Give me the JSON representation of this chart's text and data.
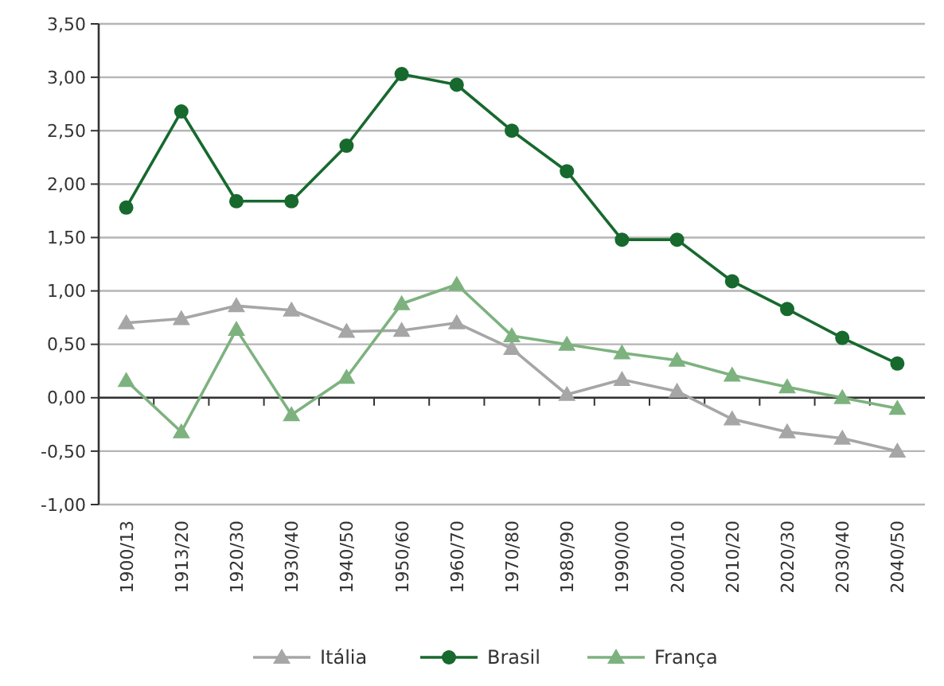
{
  "chart_data": {
    "type": "line",
    "categories": [
      "1900/13",
      "1913/20",
      "1920/30",
      "1930/40",
      "1940/50",
      "1950/60",
      "1960/70",
      "1970/80",
      "1980/90",
      "1990/00",
      "2000/10",
      "2010/20",
      "2020/30",
      "2030/40",
      "2040/50"
    ],
    "series": [
      {
        "name": "Itália",
        "color": "#a6a6a6",
        "marker": "triangle",
        "values": [
          0.7,
          0.74,
          0.86,
          0.82,
          0.62,
          0.63,
          0.7,
          0.46,
          0.03,
          0.17,
          0.06,
          -0.2,
          -0.32,
          -0.38,
          -0.5
        ]
      },
      {
        "name": "Brasil",
        "color": "#17692e",
        "marker": "circle",
        "values": [
          1.78,
          2.68,
          1.84,
          1.84,
          2.36,
          3.03,
          2.93,
          2.5,
          2.12,
          1.48,
          1.48,
          1.09,
          0.83,
          0.56,
          0.32
        ]
      },
      {
        "name": "França",
        "color": "#7db27f",
        "marker": "triangle",
        "values": [
          0.16,
          -0.32,
          0.64,
          -0.16,
          0.19,
          0.88,
          1.06,
          0.58,
          0.5,
          0.42,
          0.35,
          0.21,
          0.1,
          0.0,
          -0.1
        ]
      }
    ],
    "ylim": [
      -1,
      3.5
    ],
    "yticks": [
      {
        "value": 3.5,
        "label": "3,50"
      },
      {
        "value": 3,
        "label": "3,00"
      },
      {
        "value": 2.5,
        "label": "2,50"
      },
      {
        "value": 2,
        "label": "2,00"
      },
      {
        "value": 1.5,
        "label": "1,50"
      },
      {
        "value": 1,
        "label": "1,00"
      },
      {
        "value": 0.5,
        "label": "0,50"
      },
      {
        "value": 0,
        "label": "0,00"
      },
      {
        "value": -0.5,
        "label": "-0,50"
      },
      {
        "value": -1,
        "label": "-1,00"
      }
    ],
    "grid": "y",
    "legend": "bottom"
  }
}
